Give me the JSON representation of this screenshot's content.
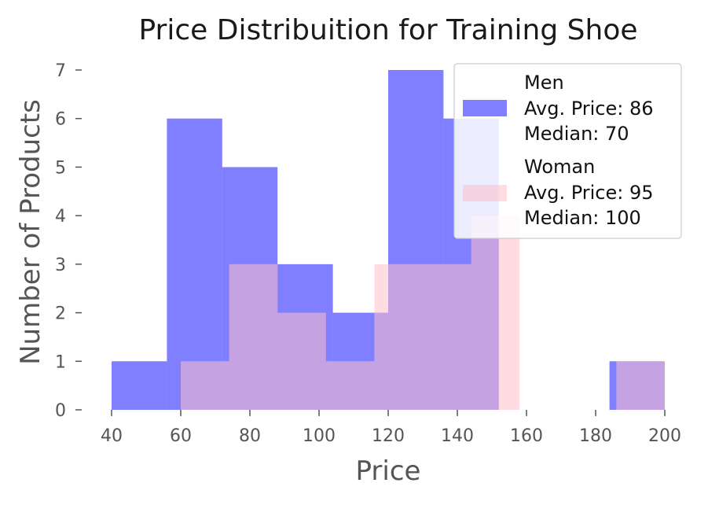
{
  "chart_data": {
    "type": "histogram",
    "title": "Price Distribuition for Training Shoe",
    "xlabel": "Price",
    "ylabel": "Number of Products",
    "xlim": [
      40,
      200
    ],
    "ylim": [
      0,
      7
    ],
    "xticks": [
      "40",
      "60",
      "80",
      "100",
      "120",
      "140",
      "160",
      "180",
      "200"
    ],
    "yticks": [
      "0",
      "1",
      "2",
      "3",
      "4",
      "5",
      "6",
      "7"
    ],
    "grid": false,
    "legend_position": "top-right",
    "series": [
      {
        "name": "Men",
        "avg_label": "Avg. Price: 86",
        "median_label": "Median: 70",
        "color": "#0000ff",
        "opacity": 0.5,
        "bins": [
          {
            "x0": 40,
            "x1": 56,
            "count": 1
          },
          {
            "x0": 56,
            "x1": 72,
            "count": 6
          },
          {
            "x0": 72,
            "x1": 88,
            "count": 5
          },
          {
            "x0": 88,
            "x1": 104,
            "count": 3
          },
          {
            "x0": 104,
            "x1": 120,
            "count": 2
          },
          {
            "x0": 120,
            "x1": 136,
            "count": 7
          },
          {
            "x0": 136,
            "x1": 152,
            "count": 6
          },
          {
            "x0": 152,
            "x1": 168,
            "count": 0
          },
          {
            "x0": 168,
            "x1": 184,
            "count": 0
          },
          {
            "x0": 184,
            "x1": 200,
            "count": 1
          }
        ]
      },
      {
        "name": "Woman",
        "avg_label": "Avg. Price: 95",
        "median_label": "Median: 100",
        "color": "#ffc0cb",
        "opacity": 0.55,
        "bins": [
          {
            "x0": 60,
            "x1": 74,
            "count": 1
          },
          {
            "x0": 74,
            "x1": 88,
            "count": 3
          },
          {
            "x0": 88,
            "x1": 102,
            "count": 2
          },
          {
            "x0": 102,
            "x1": 116,
            "count": 1
          },
          {
            "x0": 116,
            "x1": 130,
            "count": 3
          },
          {
            "x0": 130,
            "x1": 144,
            "count": 3
          },
          {
            "x0": 144,
            "x1": 158,
            "count": 4
          },
          {
            "x0": 158,
            "x1": 172,
            "count": 0
          },
          {
            "x0": 172,
            "x1": 186,
            "count": 0
          },
          {
            "x0": 186,
            "x1": 200,
            "count": 1
          }
        ]
      }
    ]
  }
}
